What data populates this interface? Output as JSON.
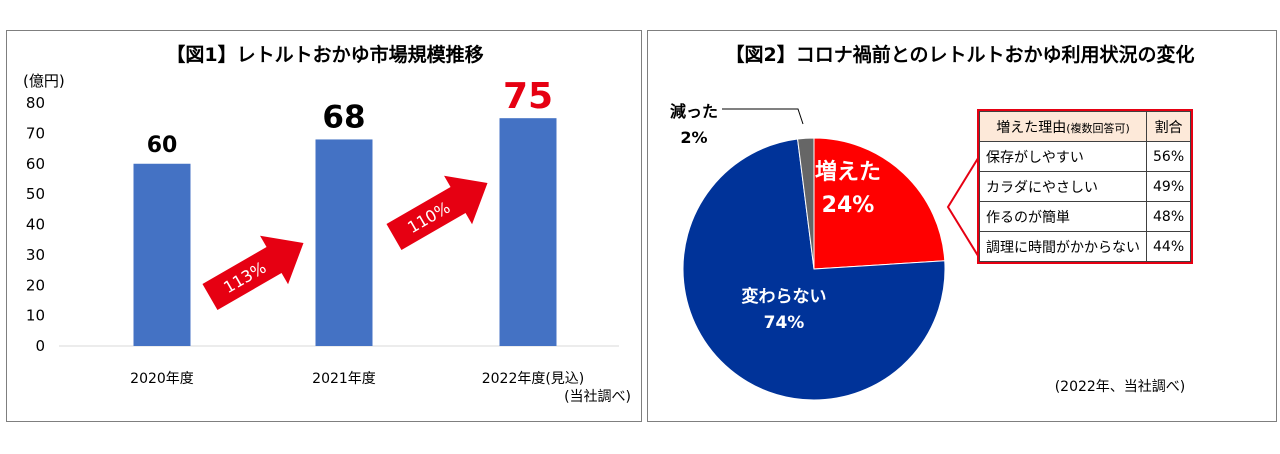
{
  "chart_data": [
    {
      "type": "bar",
      "title": "【図1】レトルトおかゆ市場規模推移",
      "ylabel": "(億円)",
      "ylim": [
        0,
        80
      ],
      "yticks": [
        0,
        10,
        20,
        30,
        40,
        50,
        60,
        70,
        80
      ],
      "categories": [
        "2020年度",
        "2021年度",
        "2022年度(見込)"
      ],
      "values": [
        60,
        68,
        75
      ],
      "value_labels": [
        "60",
        "68",
        "75"
      ],
      "growth_labels": [
        "113%",
        "110%"
      ],
      "note": "(当社調べ)",
      "grid": false,
      "colors": {
        "bar": "#4472c4",
        "highlight": "#e60012",
        "arrow": "#e60012"
      }
    },
    {
      "type": "pie",
      "title": "【図2】コロナ禍前とのレトルトおかゆ利用状況の変化",
      "slices": [
        {
          "label": "増えた",
          "value": 24,
          "value_label": "24%",
          "color": "#ff0000"
        },
        {
          "label": "変わらない",
          "value": 74,
          "value_label": "74%",
          "color": "#003399"
        },
        {
          "label": "減った",
          "value": 2,
          "value_label": "2%",
          "color": "#666666"
        }
      ],
      "note": "(2022年、当社調べ)"
    },
    {
      "type": "table",
      "headers": {
        "reason_main": "増えた理由",
        "reason_sub": "(複数回答可)",
        "ratio": "割合"
      },
      "rows": [
        {
          "reason": "保存がしやすい",
          "ratio": "56%"
        },
        {
          "reason": "カラダにやさしい",
          "ratio": "49%"
        },
        {
          "reason": "作るのが簡単",
          "ratio": "48%"
        },
        {
          "reason": "調理に時間がかからない",
          "ratio": "44%"
        }
      ]
    }
  ]
}
